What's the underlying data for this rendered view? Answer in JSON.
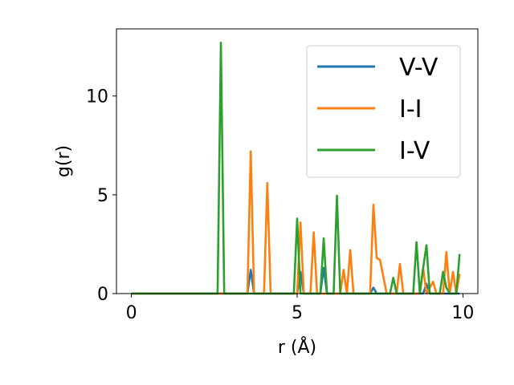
{
  "chart_data": {
    "type": "line",
    "xlabel": "r (Å)",
    "ylabel": "g(r)",
    "xlim": [
      -0.45,
      10.45
    ],
    "ylim": [
      0,
      13.4
    ],
    "xticks": [
      0,
      5,
      10
    ],
    "yticks": [
      0,
      5,
      10
    ],
    "grid": false,
    "legend_position": "top-right",
    "series": [
      {
        "name": "V-V",
        "color": "#1f77b4",
        "points": [
          [
            0,
            0
          ],
          [
            3.5,
            0
          ],
          [
            3.6,
            1.2
          ],
          [
            3.7,
            0
          ],
          [
            5.0,
            0
          ],
          [
            5.1,
            1.1
          ],
          [
            5.2,
            0
          ],
          [
            5.7,
            0
          ],
          [
            5.8,
            1.3
          ],
          [
            5.9,
            0
          ],
          [
            7.2,
            0
          ],
          [
            7.3,
            0.3
          ],
          [
            7.4,
            0
          ],
          [
            8.8,
            0
          ],
          [
            8.9,
            0.5
          ],
          [
            9.0,
            0
          ],
          [
            9.9,
            0
          ]
        ]
      },
      {
        "name": "I-I",
        "color": "#ff7f0e",
        "points": [
          [
            0,
            0
          ],
          [
            3.5,
            0
          ],
          [
            3.6,
            7.2
          ],
          [
            3.7,
            0
          ],
          [
            4.0,
            0
          ],
          [
            4.1,
            5.6
          ],
          [
            4.2,
            0
          ],
          [
            5.0,
            0
          ],
          [
            5.1,
            3.6
          ],
          [
            5.2,
            0
          ],
          [
            5.4,
            0
          ],
          [
            5.5,
            3.1
          ],
          [
            5.6,
            0
          ],
          [
            6.3,
            0
          ],
          [
            6.4,
            1.2
          ],
          [
            6.5,
            0
          ],
          [
            6.6,
            2.2
          ],
          [
            6.7,
            0
          ],
          [
            7.2,
            0
          ],
          [
            7.3,
            4.5
          ],
          [
            7.4,
            1.8
          ],
          [
            7.5,
            1.7
          ],
          [
            7.7,
            0
          ],
          [
            8.0,
            0
          ],
          [
            8.1,
            1.5
          ],
          [
            8.2,
            0
          ],
          [
            8.7,
            0
          ],
          [
            8.8,
            1.3
          ],
          [
            8.9,
            0
          ],
          [
            9.1,
            0.6
          ],
          [
            9.2,
            0
          ],
          [
            9.4,
            0
          ],
          [
            9.5,
            2.1
          ],
          [
            9.6,
            0
          ],
          [
            9.7,
            1.1
          ],
          [
            9.8,
            0
          ],
          [
            9.9,
            1.0
          ]
        ]
      },
      {
        "name": "I-V",
        "color": "#2ca02c",
        "points": [
          [
            0,
            0
          ],
          [
            2.6,
            0
          ],
          [
            2.7,
            12.7
          ],
          [
            2.8,
            0
          ],
          [
            4.9,
            0
          ],
          [
            5.0,
            3.8
          ],
          [
            5.1,
            0
          ],
          [
            5.7,
            0
          ],
          [
            5.8,
            2.8
          ],
          [
            5.9,
            0
          ],
          [
            6.1,
            0
          ],
          [
            6.2,
            4.95
          ],
          [
            6.3,
            0
          ],
          [
            7.8,
            0
          ],
          [
            7.9,
            0.8
          ],
          [
            8.0,
            0
          ],
          [
            8.5,
            0
          ],
          [
            8.6,
            2.6
          ],
          [
            8.7,
            0
          ],
          [
            8.8,
            1.3
          ],
          [
            8.9,
            2.45
          ],
          [
            9.0,
            0
          ],
          [
            9.3,
            0
          ],
          [
            9.4,
            1.1
          ],
          [
            9.5,
            0.3
          ],
          [
            9.6,
            0
          ],
          [
            9.8,
            0
          ],
          [
            9.9,
            2.0
          ]
        ]
      }
    ]
  }
}
